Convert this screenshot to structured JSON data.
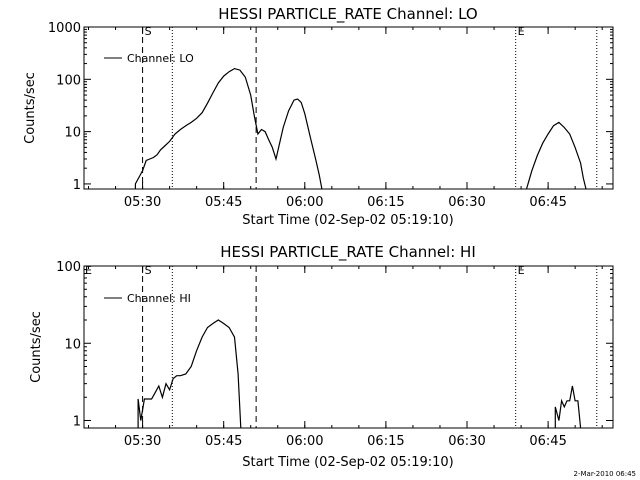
{
  "colors": {
    "background": "#ffffff",
    "foreground": "#000000"
  },
  "footer": {
    "timestamp": "2-Mar-2010 06:45"
  },
  "chart_data": [
    {
      "type": "line",
      "title": "HESSI PARTICLE_RATE Channel: LO",
      "xlabel": "Start Time (02-Sep-02 05:19:10)",
      "ylabel": "Counts/sec",
      "yscale": "log",
      "xlim": [
        "05:19:10",
        "06:57:00"
      ],
      "ylim": [
        0.8,
        1000
      ],
      "xticks": [
        "05:30",
        "05:45",
        "06:00",
        "06:15",
        "06:30",
        "06:45"
      ],
      "yticks": [
        {
          "value": 1,
          "label": "1"
        },
        {
          "value": 10,
          "label": "10"
        },
        {
          "value": 100,
          "label": "100"
        },
        {
          "value": 1000,
          "label": "1000"
        }
      ],
      "legend": {
        "label": "Channel: LO",
        "position": "top-left"
      },
      "markers": [
        {
          "time": "05:30:00",
          "style": "dashed",
          "label": "S"
        },
        {
          "time": "05:35:30",
          "style": "dotted",
          "label": ""
        },
        {
          "time": "05:51:00",
          "style": "dashed",
          "label": ""
        },
        {
          "time": "06:39:00",
          "style": "dotted",
          "label": "E"
        },
        {
          "time": "06:54:00",
          "style": "dotted",
          "label": ""
        }
      ],
      "series": [
        {
          "segments": [
            [
              [
                "05:28:40",
                0.8
              ],
              [
                "05:28:40",
                1
              ],
              [
                "05:30:00",
                1.8
              ],
              [
                "05:30:40",
                2.8
              ],
              [
                "05:31:20",
                3
              ],
              [
                "05:32:00",
                3.2
              ],
              [
                "05:32:40",
                3.6
              ],
              [
                "05:33:20",
                4.5
              ],
              [
                "05:34:00",
                5.2
              ],
              [
                "05:35:00",
                6.5
              ],
              [
                "05:36:00",
                9
              ],
              [
                "05:37:00",
                11
              ],
              [
                "05:38:00",
                13
              ],
              [
                "05:39:00",
                15
              ],
              [
                "05:40:00",
                18
              ],
              [
                "05:41:00",
                23
              ],
              [
                "05:42:00",
                35
              ],
              [
                "05:43:00",
                55
              ],
              [
                "05:44:00",
                85
              ],
              [
                "05:45:00",
                115
              ],
              [
                "05:46:00",
                140
              ],
              [
                "05:47:00",
                160
              ],
              [
                "05:48:00",
                150
              ],
              [
                "05:49:00",
                110
              ],
              [
                "05:50:00",
                50
              ],
              [
                "05:50:40",
                20
              ],
              [
                "05:51:20",
                9
              ],
              [
                "05:52:00",
                11
              ],
              [
                "05:52:40",
                10
              ],
              [
                "05:53:20",
                7
              ],
              [
                "05:54:00",
                5
              ],
              [
                "05:54:40",
                3
              ],
              [
                "05:55:20",
                6
              ],
              [
                "05:56:00",
                12
              ],
              [
                "05:57:00",
                25
              ],
              [
                "05:58:00",
                40
              ],
              [
                "05:58:40",
                42
              ],
              [
                "05:59:20",
                36
              ],
              [
                "06:00:00",
                22
              ],
              [
                "06:01:00",
                8
              ],
              [
                "06:02:00",
                3
              ],
              [
                "06:02:40",
                1.5
              ],
              [
                "06:03:10",
                0.8
              ]
            ],
            [
              [
                "06:41:00",
                0.8
              ],
              [
                "06:41:30",
                1.2
              ],
              [
                "06:42:00",
                1.8
              ],
              [
                "06:43:00",
                3.5
              ],
              [
                "06:44:00",
                6
              ],
              [
                "06:45:00",
                9
              ],
              [
                "06:46:00",
                13
              ],
              [
                "06:47:00",
                15
              ],
              [
                "06:48:00",
                12
              ],
              [
                "06:49:00",
                9
              ],
              [
                "06:50:00",
                5
              ],
              [
                "06:51:00",
                2.5
              ],
              [
                "06:51:30",
                1.3
              ],
              [
                "06:52:00",
                0.8
              ]
            ]
          ]
        }
      ]
    },
    {
      "type": "line",
      "title": "HESSI PARTICLE_RATE Channel: HI",
      "xlabel": "Start Time (02-Sep-02 05:19:10)",
      "ylabel": "Counts/sec",
      "yscale": "log",
      "xlim": [
        "05:19:10",
        "06:57:00"
      ],
      "ylim": [
        0.8,
        100
      ],
      "xticks": [
        "05:30",
        "05:45",
        "06:00",
        "06:15",
        "06:30",
        "06:45"
      ],
      "yticks": [
        {
          "value": 1,
          "label": "1"
        },
        {
          "value": 10,
          "label": "10"
        },
        {
          "value": 100,
          "label": "100"
        }
      ],
      "legend": {
        "label": "Channel: HI",
        "position": "top-left"
      },
      "markers": [
        {
          "time": "05:30:00",
          "style": "dashed",
          "label": "S"
        },
        {
          "time": "05:35:30",
          "style": "dotted",
          "label": ""
        },
        {
          "time": "05:51:00",
          "style": "dashed",
          "label": ""
        },
        {
          "time": "06:39:00",
          "style": "dotted",
          "label": "E"
        },
        {
          "time": "06:54:00",
          "style": "dotted",
          "label": ""
        }
      ],
      "corner_labels": [
        {
          "time": "05:19:10",
          "label": "E"
        }
      ],
      "series": [
        {
          "segments": [
            [
              [
                "05:29:10",
                0.8
              ],
              [
                "05:29:10",
                1.9
              ],
              [
                "05:29:40",
                1
              ],
              [
                "05:30:20",
                1.9
              ],
              [
                "05:31:00",
                1.9
              ],
              [
                "05:31:40",
                1.9
              ],
              [
                "05:32:20",
                2.3
              ],
              [
                "05:33:00",
                2.8
              ],
              [
                "05:33:40",
                2
              ],
              [
                "05:34:20",
                3
              ],
              [
                "05:35:00",
                2.5
              ],
              [
                "05:35:40",
                3.5
              ],
              [
                "05:36:20",
                3.8
              ],
              [
                "05:37:00",
                3.8
              ],
              [
                "05:38:00",
                4
              ],
              [
                "05:39:00",
                5
              ],
              [
                "05:40:00",
                8
              ],
              [
                "05:41:00",
                12
              ],
              [
                "05:42:00",
                16
              ],
              [
                "05:43:00",
                18
              ],
              [
                "05:44:00",
                20
              ],
              [
                "05:45:00",
                18
              ],
              [
                "05:46:00",
                16
              ],
              [
                "05:47:00",
                12
              ],
              [
                "05:47:40",
                4
              ],
              [
                "05:48:10",
                0.8
              ]
            ],
            [
              [
                "06:46:20",
                0.8
              ],
              [
                "06:46:20",
                1.5
              ],
              [
                "06:47:00",
                1
              ],
              [
                "06:47:30",
                1.8
              ],
              [
                "06:48:00",
                1.5
              ],
              [
                "06:48:30",
                1.8
              ],
              [
                "06:49:00",
                1.8
              ],
              [
                "06:49:30",
                2.8
              ],
              [
                "06:50:00",
                1.8
              ],
              [
                "06:50:30",
                1.8
              ],
              [
                "06:51:00",
                0.8
              ]
            ]
          ]
        }
      ]
    }
  ]
}
